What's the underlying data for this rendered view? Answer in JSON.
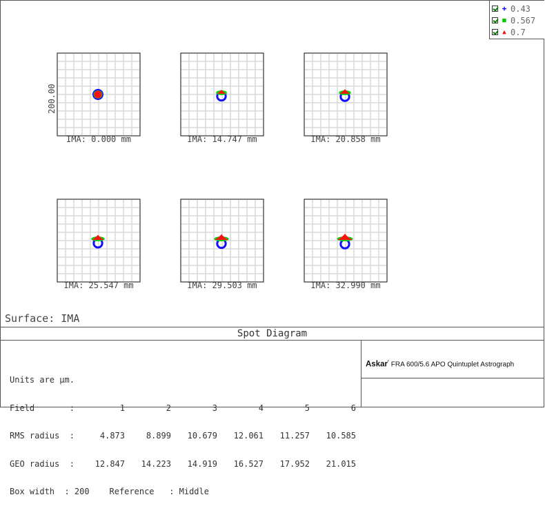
{
  "legend": [
    {
      "label": "0.43",
      "marker": "+",
      "color": "#0000ff"
    },
    {
      "label": "0.567",
      "marker": "■",
      "color": "#00c800"
    },
    {
      "label": "0.7",
      "marker": "▲",
      "color": "#ff0000"
    }
  ],
  "scale_label": "200.00",
  "fields": [
    {
      "caption": "IMA: 0.000 mm",
      "spot_shift": 0
    },
    {
      "caption": "IMA: 14.747 mm",
      "spot_shift": 1
    },
    {
      "caption": "IMA: 20.858 mm",
      "spot_shift": 2
    },
    {
      "caption": "IMA: 25.547 mm",
      "spot_shift": 3
    },
    {
      "caption": "IMA: 29.503 mm",
      "spot_shift": 4
    },
    {
      "caption": "IMA: 32.990 mm",
      "spot_shift": 5
    }
  ],
  "surface": "Surface: IMA",
  "title": "Spot Diagram",
  "stats": {
    "units": "Units are µm.",
    "field_label": "Field       :",
    "field_values": [
      "1",
      "2",
      "3",
      "4",
      "5",
      "6"
    ],
    "rms_label": "RMS radius  :",
    "rms_values": [
      "4.873",
      "8.899",
      "10.679",
      "12.061",
      "11.257",
      "10.585"
    ],
    "geo_label": "GEO radius  :",
    "geo_values": [
      "12.847",
      "14.223",
      "14.919",
      "16.527",
      "17.952",
      "21.015"
    ],
    "box_line": "Box width  : 200    Reference   : Middle"
  },
  "brand": {
    "name": "Askar",
    "mark": "ʳ",
    "rest": " FRA 600/5.6 APO Quintuplet Astrograph"
  }
}
